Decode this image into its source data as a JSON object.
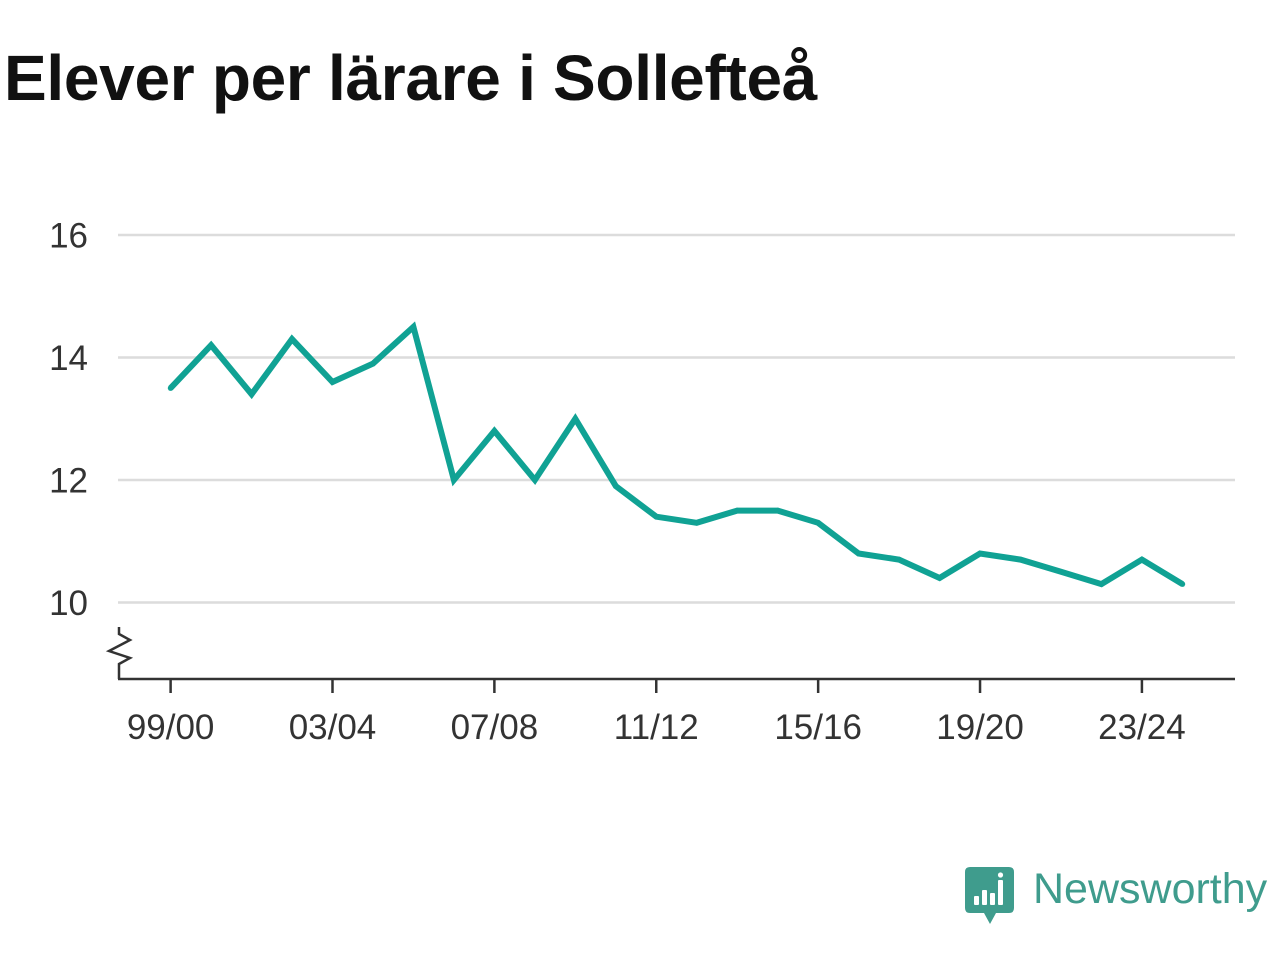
{
  "brand": {
    "name": "Newsworthy",
    "icon": "newsworthy-logo-icon",
    "color": "#3f9c8d"
  },
  "chart_data": {
    "type": "line",
    "title": "Elever per lärare i Sollefteå",
    "xlabel": "",
    "ylabel": "",
    "x": [
      1999,
      2000,
      2001,
      2002,
      2003,
      2004,
      2005,
      2006,
      2007,
      2008,
      2009,
      2010,
      2011,
      2012,
      2013,
      2014,
      2015,
      2016,
      2017,
      2018,
      2019,
      2020,
      2021,
      2022,
      2023,
      2024
    ],
    "series": [
      {
        "values": [
          13.5,
          14.2,
          13.4,
          14.3,
          13.6,
          13.9,
          14.5,
          12.0,
          12.8,
          12.0,
          13.0,
          11.9,
          11.4,
          11.3,
          11.5,
          11.5,
          11.3,
          10.8,
          10.7,
          10.4,
          10.8,
          10.7,
          10.5,
          10.3,
          10.7,
          10.3
        ],
        "color": "#10a294"
      }
    ],
    "x_ticks": [
      {
        "value": 1999,
        "label": "99/00"
      },
      {
        "value": 2003,
        "label": "03/04"
      },
      {
        "value": 2007,
        "label": "07/08"
      },
      {
        "value": 2011,
        "label": "11/12"
      },
      {
        "value": 2015,
        "label": "15/16"
      },
      {
        "value": 2019,
        "label": "19/20"
      },
      {
        "value": 2023,
        "label": "23/24"
      }
    ],
    "y_ticks": [
      10,
      12,
      14,
      16
    ],
    "xlim": [
      1997.7,
      2025.3
    ],
    "ylim": [
      8.75,
      16
    ],
    "y_axis_break": true,
    "grid": "horizontal",
    "legend": "none",
    "colors": {
      "grid": "#dcdcdc",
      "axis": "#333333",
      "title": "#111111"
    }
  }
}
